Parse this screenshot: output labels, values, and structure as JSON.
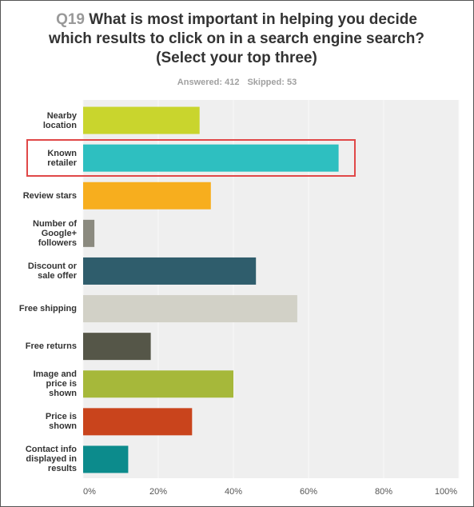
{
  "chart_data": {
    "type": "bar",
    "orientation": "horizontal",
    "question_number": "Q19",
    "title": "What is most important in helping you decide which results to click on in a search engine search? (Select your top three)",
    "answered": "Answered: 412",
    "skipped": "Skipped: 53",
    "categories": [
      "Nearby location",
      "Known retailer",
      "Review stars",
      "Number of Google+ followers",
      "Discount or sale offer",
      "Free shipping",
      "Free returns",
      "Image and price is shown",
      "Price is shown",
      "Contact info displayed in results"
    ],
    "values": [
      31,
      68,
      34,
      3,
      46,
      57,
      18,
      40,
      29,
      12
    ],
    "colors": [
      "#c9d52d",
      "#2ebfc0",
      "#f7ae1e",
      "#8b8a7f",
      "#2f5d6c",
      "#d2d1c7",
      "#555648",
      "#a6b83a",
      "#c9441c",
      "#0c8b8c"
    ],
    "xlim": [
      0,
      100
    ],
    "xticks": [
      {
        "value": 0,
        "label": "0%"
      },
      {
        "value": 20,
        "label": "20%"
      },
      {
        "value": 40,
        "label": "40%"
      },
      {
        "value": 60,
        "label": "60%"
      },
      {
        "value": 80,
        "label": "80%"
      },
      {
        "value": 100,
        "label": "100%"
      }
    ],
    "grid": true
  }
}
